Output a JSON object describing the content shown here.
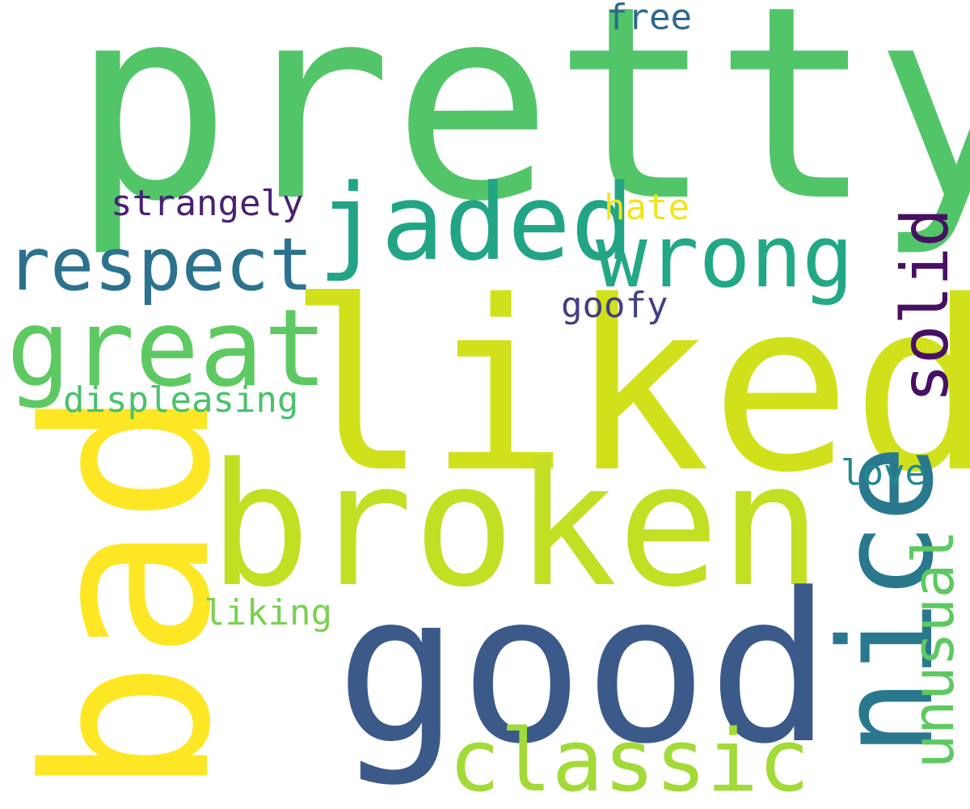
{
  "word_cloud": {
    "background": "#ffffff",
    "words": {
      "pretty": {
        "text": "pretty",
        "color": "#52c569",
        "orientation": "horizontal"
      },
      "liked": {
        "text": "liked",
        "color": "#d0e11c",
        "orientation": "horizontal"
      },
      "broken": {
        "text": "broken",
        "color": "#c2df23",
        "orientation": "horizontal"
      },
      "good": {
        "text": "good",
        "color": "#3b5a8a",
        "orientation": "horizontal"
      },
      "bad": {
        "text": "bad",
        "color": "#fde725",
        "orientation": "vertical"
      },
      "jaded": {
        "text": "jaded",
        "color": "#21a585",
        "orientation": "horizontal"
      },
      "wrong": {
        "text": "wrong",
        "color": "#22a884",
        "orientation": "horizontal"
      },
      "great": {
        "text": "great",
        "color": "#5ec962",
        "orientation": "horizontal"
      },
      "respect": {
        "text": "respect",
        "color": "#2c728e",
        "orientation": "horizontal"
      },
      "nice": {
        "text": "nice",
        "color": "#2a788e",
        "orientation": "vertical"
      },
      "classic": {
        "text": "classic",
        "color": "#a2da37",
        "orientation": "horizontal"
      },
      "unusual": {
        "text": "unusual",
        "color": "#5ec962",
        "orientation": "vertical"
      },
      "solid": {
        "text": "solid",
        "color": "#471063",
        "orientation": "vertical"
      },
      "strangely": {
        "text": "strangely",
        "color": "#482173",
        "orientation": "horizontal"
      },
      "hate": {
        "text": "hate",
        "color": "#f0e51d",
        "orientation": "horizontal"
      },
      "free": {
        "text": "free",
        "color": "#31688e",
        "orientation": "horizontal"
      },
      "goofy": {
        "text": "goofy",
        "color": "#433e85",
        "orientation": "horizontal"
      },
      "displeasing": {
        "text": "displeasing",
        "color": "#4ac16d",
        "orientation": "horizontal"
      },
      "love": {
        "text": "love",
        "color": "#23898e",
        "orientation": "horizontal"
      },
      "liking": {
        "text": "liking",
        "color": "#7ad151",
        "orientation": "horizontal"
      }
    }
  }
}
